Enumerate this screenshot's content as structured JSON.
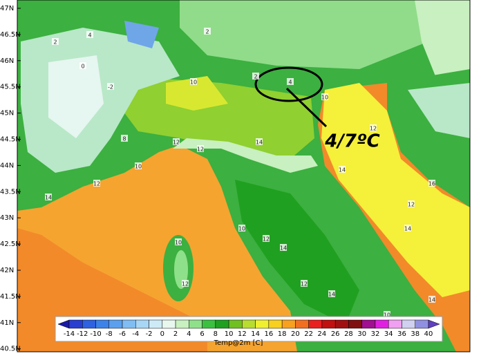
{
  "map": {
    "lat_labels": [
      "47N",
      "46.5N",
      "46N",
      "45.5N",
      "45N",
      "44.5N",
      "44N",
      "43.5N",
      "43N",
      "42.5N",
      "42N",
      "41.5N",
      "41N",
      "40.5N"
    ],
    "annotation": "4/7ºC",
    "contour_labels": [
      "2",
      "4",
      "2",
      "0",
      "-2",
      "2",
      "4",
      "10",
      "8",
      "12",
      "12",
      "14",
      "10",
      "12",
      "14",
      "10",
      "14",
      "12",
      "16",
      "14",
      "10",
      "12",
      "14",
      "12",
      "14",
      "10",
      "12",
      "14",
      "12",
      "10",
      "14",
      "12"
    ],
    "colorbar": {
      "title": "Temp@2m [C]",
      "ticks": [
        -14,
        -12,
        -10,
        -8,
        -6,
        -4,
        -2,
        0,
        2,
        4,
        6,
        8,
        10,
        12,
        14,
        16,
        18,
        20,
        22,
        24,
        26,
        28,
        30,
        32,
        34,
        36,
        38,
        40
      ],
      "colors": [
        "#1a1aa8",
        "#2a3fd0",
        "#2f62e0",
        "#3c82e8",
        "#5aa0ee",
        "#80bdf2",
        "#a8d6f5",
        "#cdebf6",
        "#e8f8ee",
        "#c8f0c0",
        "#8fe08a",
        "#3cc040",
        "#20a020",
        "#70c020",
        "#b8dc30",
        "#f0f030",
        "#f8d020",
        "#f8a020",
        "#f07020",
        "#e82020",
        "#c01010",
        "#a01010",
        "#801010",
        "#a01090",
        "#e020e0",
        "#f0a0f0",
        "#d0d0f0",
        "#9090e0",
        "#6040c0"
      ]
    }
  }
}
